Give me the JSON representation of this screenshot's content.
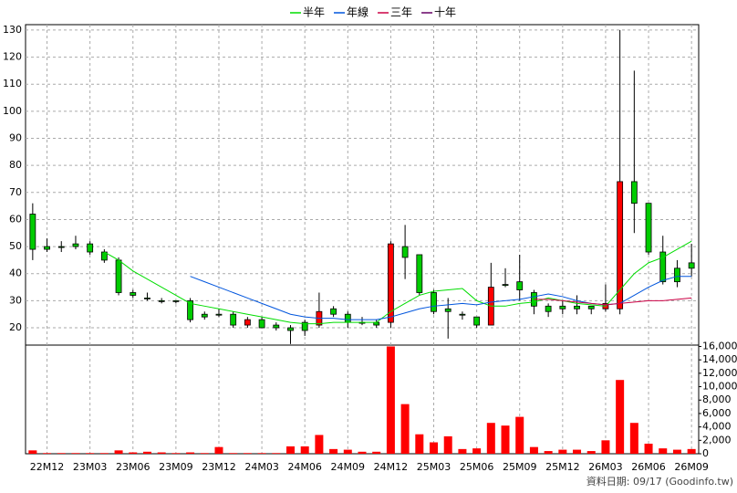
{
  "chart_data": [
    {
      "type": "candlestick",
      "categories": [
        null,
        "22M12",
        null,
        null,
        "23M03",
        null,
        null,
        "23M06",
        null,
        null,
        "23M09",
        null,
        null,
        "23M12",
        null,
        null,
        "24M03",
        null,
        null,
        "24M06",
        null,
        null,
        "24M09",
        null,
        null,
        "24M12",
        null,
        null,
        "25M03",
        null,
        null,
        "25M06",
        null,
        null,
        "25M09",
        null,
        null,
        "25M12",
        null,
        null,
        "26M03",
        null,
        null,
        "26M06",
        null,
        null,
        "26M09"
      ],
      "open": [
        62,
        50,
        50,
        51,
        51,
        48,
        45,
        33,
        31,
        30,
        30,
        30,
        25,
        25,
        25,
        21,
        23,
        21,
        20,
        22,
        21,
        27,
        25,
        22,
        22,
        22,
        50,
        47,
        33,
        27,
        25,
        24,
        21,
        36,
        37,
        33,
        28,
        28,
        28,
        28,
        27,
        27,
        74,
        66,
        48,
        42,
        44
      ],
      "high": [
        66,
        53,
        52,
        54,
        52,
        49,
        46,
        34,
        33,
        31,
        30,
        31,
        26,
        27,
        26,
        24,
        24,
        22,
        21,
        23,
        33,
        28,
        26,
        24,
        23,
        52,
        58,
        47,
        34,
        31,
        26,
        24,
        44,
        42,
        47,
        34,
        29,
        30,
        32,
        28,
        36,
        130,
        115,
        66,
        54,
        45,
        51
      ],
      "low": [
        45,
        48,
        48,
        49,
        47,
        44,
        32,
        31,
        30,
        29,
        29,
        22,
        23,
        24,
        20,
        20,
        20,
        19,
        14,
        17,
        20,
        24,
        20,
        21,
        20,
        20,
        38,
        32,
        25,
        16,
        23,
        20,
        21,
        35,
        30,
        25,
        24,
        25,
        25,
        25,
        26,
        25,
        55,
        47,
        36,
        35,
        39
      ],
      "close": [
        49,
        49,
        50,
        50,
        48,
        45,
        33,
        32,
        31,
        30,
        30,
        23,
        24,
        25,
        21,
        23,
        20,
        20,
        19,
        19,
        26,
        25,
        22,
        22,
        21,
        51,
        46,
        33,
        26,
        26,
        25,
        21,
        35,
        36,
        34,
        28,
        26,
        27,
        27,
        27,
        29,
        74,
        66,
        48,
        37,
        37,
        42
      ],
      "up_color": "#ff0000",
      "down_color": "#00cc00",
      "series": [
        {
          "name": "半年",
          "color": "#00dd00",
          "values": [
            null,
            null,
            null,
            null,
            null,
            48,
            45,
            41,
            38,
            35,
            32,
            29,
            28,
            27,
            26,
            25,
            24,
            23,
            22,
            21.5,
            21.5,
            22,
            22,
            22,
            22,
            26,
            29,
            32,
            33.5,
            34,
            34.5,
            30,
            28,
            28,
            29,
            29.5,
            31,
            30,
            29,
            28.5,
            28,
            34,
            40,
            44,
            46,
            49,
            52
          ]
        },
        {
          "name": "年線",
          "color": "#0055dd",
          "values": [
            null,
            null,
            null,
            null,
            null,
            null,
            null,
            null,
            null,
            null,
            null,
            39,
            37,
            35,
            33,
            31,
            29,
            27,
            25,
            24,
            23.5,
            23.5,
            23,
            23,
            23,
            24,
            25.5,
            27,
            28,
            28.5,
            29,
            28.5,
            29.5,
            30,
            30.5,
            31.5,
            32.5,
            31.5,
            30,
            29,
            28.5,
            29,
            32,
            35,
            37.5,
            39,
            39
          ]
        },
        {
          "name": "三年",
          "color": "#cc0044",
          "values": [
            null,
            null,
            null,
            null,
            null,
            null,
            null,
            null,
            null,
            null,
            null,
            null,
            null,
            null,
            null,
            null,
            null,
            null,
            null,
            null,
            null,
            null,
            null,
            null,
            null,
            null,
            null,
            null,
            null,
            null,
            null,
            null,
            null,
            null,
            null,
            30.5,
            30.5,
            30,
            29.5,
            29,
            28.5,
            29,
            29.5,
            30,
            30,
            30.5,
            31
          ]
        },
        {
          "name": "十年",
          "color": "#660066",
          "values": [
            null,
            null,
            null,
            null,
            null,
            null,
            null,
            null,
            null,
            null,
            null,
            null,
            null,
            null,
            null,
            null,
            null,
            null,
            null,
            null,
            null,
            null,
            null,
            null,
            null,
            null,
            null,
            null,
            null,
            null,
            null,
            null,
            null,
            null,
            null,
            null,
            null,
            null,
            null,
            null,
            null,
            null,
            null,
            null,
            null,
            null,
            null
          ]
        }
      ],
      "ylim": [
        13.6,
        132
      ],
      "yticks": [
        20,
        30,
        40,
        50,
        60,
        70,
        80,
        90,
        100,
        110,
        120,
        130
      ],
      "grid": true
    },
    {
      "type": "bar",
      "values": [
        500,
        100,
        100,
        100,
        100,
        100,
        500,
        200,
        300,
        200,
        100,
        200,
        100,
        1000,
        100,
        100,
        100,
        100,
        1100,
        1100,
        2800,
        700,
        600,
        300,
        300,
        16000,
        7400,
        2900,
        1700,
        2600,
        700,
        800,
        4600,
        4200,
        5500,
        1000,
        400,
        600,
        600,
        400,
        2000,
        11000,
        4600,
        1500,
        800,
        600,
        700
      ],
      "color": "#ff0000",
      "ylim": [
        0,
        16200
      ],
      "yticks": [
        0,
        {
          "value": 2000,
          "label": "2,000"
        },
        {
          "value": 4000,
          "label": "4,000"
        },
        {
          "value": 6000,
          "label": "6,000"
        },
        {
          "value": 8000,
          "label": "8,000"
        },
        {
          "value": 10000,
          "label": "10,000"
        },
        {
          "value": 12000,
          "label": "12,000"
        },
        {
          "value": 14000,
          "label": "14,000"
        },
        {
          "value": 16000,
          "label": "16,000"
        }
      ]
    }
  ],
  "footer": "資料日期: 09/17  (Goodinfo.tw)"
}
